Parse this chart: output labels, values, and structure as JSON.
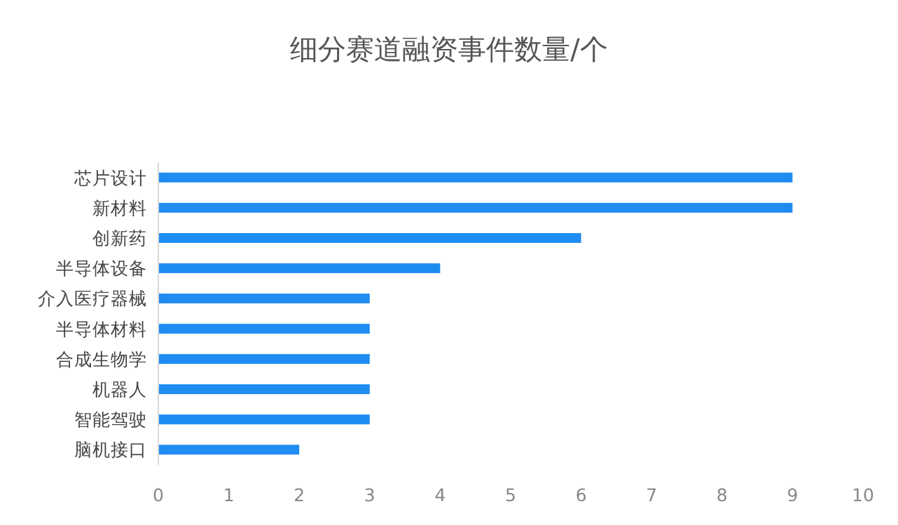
{
  "chart_data": {
    "type": "bar",
    "orientation": "horizontal",
    "title": "细分赛道融资事件数量/个",
    "categories": [
      "芯片设计",
      "新材料",
      "创新药",
      "半导体设备",
      "介入医疗器械",
      "半导体材料",
      "合成生物学",
      "机器人",
      "智能驾驶",
      "脑机接口"
    ],
    "values": [
      9,
      9,
      6,
      4,
      3,
      3,
      3,
      3,
      3,
      2
    ],
    "color": "#1e8cf0",
    "xlim": [
      0,
      10
    ],
    "xticks": [
      0,
      1,
      2,
      3,
      4,
      5,
      6,
      7,
      8,
      9,
      10
    ]
  }
}
